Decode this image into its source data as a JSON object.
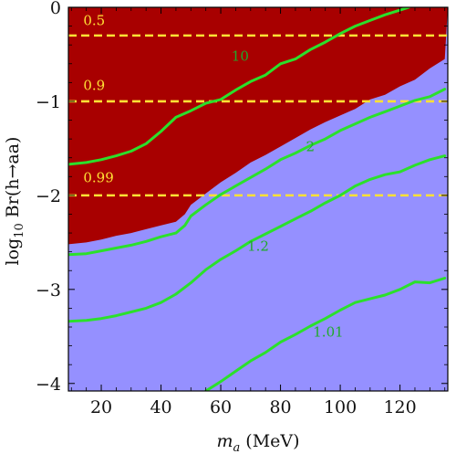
{
  "chart_data": {
    "type": "line",
    "xlabel_main": "m",
    "xlabel_sub": "a",
    "xlabel_unit": " (MeV)",
    "ylabel_pre": "log",
    "ylabel_sub": "10",
    "ylabel_post": " Br(h→aa)",
    "xlim": [
      9,
      136
    ],
    "ylim": [
      -4.08,
      0
    ],
    "xticks": [
      20,
      40,
      60,
      80,
      100,
      120
    ],
    "xtick_labels": [
      "20",
      "40",
      "60",
      "80",
      "100",
      "120"
    ],
    "yticks": [
      0,
      -1,
      -2,
      -3,
      -4
    ],
    "ytick_labels": [
      "0",
      "−1",
      "−2",
      "−3",
      "−4"
    ],
    "colors": {
      "excluded": "#a80000",
      "allowed": "#9590ff",
      "contour": "#2be02b",
      "hline": "#ffe135",
      "contour_label": "#1faa2a"
    },
    "region_boundary": [
      [
        9,
        -2.52
      ],
      [
        15,
        -2.5
      ],
      [
        20,
        -2.47
      ],
      [
        25,
        -2.43
      ],
      [
        30,
        -2.4
      ],
      [
        35,
        -2.36
      ],
      [
        40,
        -2.32
      ],
      [
        45,
        -2.28
      ],
      [
        48,
        -2.2
      ],
      [
        50,
        -2.1
      ],
      [
        55,
        -1.98
      ],
      [
        60,
        -1.86
      ],
      [
        65,
        -1.76
      ],
      [
        70,
        -1.65
      ],
      [
        75,
        -1.57
      ],
      [
        80,
        -1.48
      ],
      [
        85,
        -1.39
      ],
      [
        90,
        -1.3
      ],
      [
        95,
        -1.22
      ],
      [
        100,
        -1.15
      ],
      [
        105,
        -1.08
      ],
      [
        110,
        -0.98
      ],
      [
        115,
        -0.93
      ],
      [
        120,
        -0.84
      ],
      [
        125,
        -0.77
      ],
      [
        130,
        -0.65
      ],
      [
        135,
        -0.55
      ]
    ],
    "horizontal_lines": [
      {
        "name": "0.5",
        "y": -0.3
      },
      {
        "name": "0.9",
        "y": -1.0
      },
      {
        "name": "0.99",
        "y": -2.0
      }
    ],
    "series": [
      {
        "name": "10",
        "points": [
          [
            9,
            -1.67
          ],
          [
            15,
            -1.65
          ],
          [
            20,
            -1.62
          ],
          [
            25,
            -1.58
          ],
          [
            30,
            -1.53
          ],
          [
            35,
            -1.45
          ],
          [
            40,
            -1.32
          ],
          [
            45,
            -1.17
          ],
          [
            50,
            -1.1
          ],
          [
            55,
            -1.02
          ],
          [
            60,
            -0.98
          ],
          [
            65,
            -0.88
          ],
          [
            70,
            -0.79
          ],
          [
            75,
            -0.72
          ],
          [
            80,
            -0.6
          ],
          [
            85,
            -0.55
          ],
          [
            90,
            -0.45
          ],
          [
            95,
            -0.37
          ],
          [
            100,
            -0.28
          ],
          [
            105,
            -0.2
          ],
          [
            110,
            -0.14
          ],
          [
            115,
            -0.08
          ],
          [
            120,
            -0.03
          ],
          [
            123,
            0
          ]
        ]
      },
      {
        "name": "2",
        "points": [
          [
            9,
            -2.63
          ],
          [
            15,
            -2.62
          ],
          [
            20,
            -2.59
          ],
          [
            25,
            -2.56
          ],
          [
            30,
            -2.53
          ],
          [
            35,
            -2.49
          ],
          [
            40,
            -2.44
          ],
          [
            45,
            -2.4
          ],
          [
            48,
            -2.32
          ],
          [
            50,
            -2.22
          ],
          [
            55,
            -2.1
          ],
          [
            60,
            -1.99
          ],
          [
            65,
            -1.9
          ],
          [
            70,
            -1.81
          ],
          [
            75,
            -1.72
          ],
          [
            80,
            -1.62
          ],
          [
            85,
            -1.55
          ],
          [
            90,
            -1.47
          ],
          [
            95,
            -1.4
          ],
          [
            100,
            -1.31
          ],
          [
            105,
            -1.24
          ],
          [
            110,
            -1.17
          ],
          [
            115,
            -1.11
          ],
          [
            120,
            -1.05
          ],
          [
            125,
            -0.99
          ],
          [
            130,
            -0.95
          ],
          [
            135,
            -0.87
          ]
        ]
      },
      {
        "name": "1.2",
        "points": [
          [
            9,
            -3.34
          ],
          [
            15,
            -3.33
          ],
          [
            20,
            -3.31
          ],
          [
            25,
            -3.28
          ],
          [
            30,
            -3.24
          ],
          [
            35,
            -3.2
          ],
          [
            40,
            -3.14
          ],
          [
            45,
            -3.05
          ],
          [
            50,
            -2.93
          ],
          [
            55,
            -2.79
          ],
          [
            60,
            -2.68
          ],
          [
            65,
            -2.59
          ],
          [
            70,
            -2.49
          ],
          [
            75,
            -2.41
          ],
          [
            80,
            -2.33
          ],
          [
            85,
            -2.25
          ],
          [
            90,
            -2.17
          ],
          [
            95,
            -2.08
          ],
          [
            100,
            -2.0
          ],
          [
            105,
            -1.9
          ],
          [
            110,
            -1.83
          ],
          [
            115,
            -1.78
          ],
          [
            120,
            -1.75
          ],
          [
            125,
            -1.68
          ],
          [
            130,
            -1.62
          ],
          [
            135,
            -1.58
          ]
        ]
      },
      {
        "name": "1.01",
        "points": [
          [
            55,
            -4.08
          ],
          [
            60,
            -3.98
          ],
          [
            65,
            -3.87
          ],
          [
            70,
            -3.76
          ],
          [
            75,
            -3.67
          ],
          [
            80,
            -3.56
          ],
          [
            85,
            -3.48
          ],
          [
            90,
            -3.39
          ],
          [
            95,
            -3.31
          ],
          [
            100,
            -3.22
          ],
          [
            105,
            -3.14
          ],
          [
            110,
            -3.1
          ],
          [
            115,
            -3.06
          ],
          [
            120,
            -3.0
          ],
          [
            125,
            -2.92
          ],
          [
            130,
            -2.93
          ],
          [
            135,
            -2.88
          ]
        ]
      }
    ],
    "contour_labels": [
      {
        "text": "10",
        "x": 66.5,
        "y": -0.57
      },
      {
        "text": "2",
        "x": 90,
        "y": -1.53
      },
      {
        "text": "1.2",
        "x": 72.5,
        "y": -2.59
      },
      {
        "text": "1.01",
        "x": 96,
        "y": -3.5
      }
    ],
    "hline_labels": [
      {
        "text": "0.5",
        "x": 14,
        "y": -0.19
      },
      {
        "text": "0.9",
        "x": 14,
        "y": -0.88
      },
      {
        "text": "0.99",
        "x": 14,
        "y": -1.86
      }
    ]
  }
}
